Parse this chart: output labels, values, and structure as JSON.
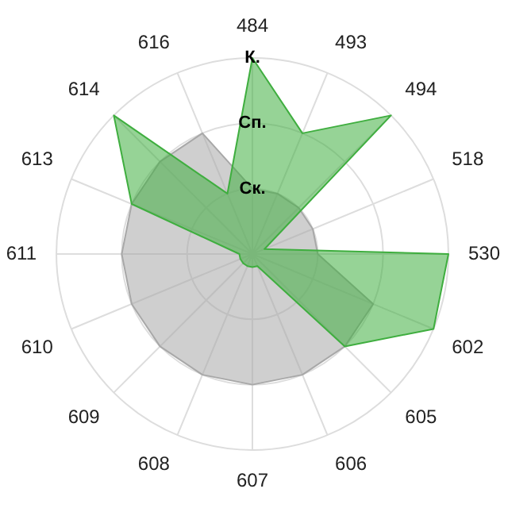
{
  "chart_data": {
    "type": "radar",
    "categories": [
      "484",
      "493",
      "494",
      "518",
      "530",
      "602",
      "605",
      "606",
      "607",
      "608",
      "609",
      "610",
      "611",
      "613",
      "614",
      "616"
    ],
    "ylim": [
      0,
      3
    ],
    "yticks": [
      {
        "value": 1,
        "label": "Ск."
      },
      {
        "value": 2,
        "label": "Сп."
      },
      {
        "value": 3,
        "label": "К."
      }
    ],
    "grid": true,
    "legend": false,
    "marker": "none",
    "series": [
      {
        "color": "#a8a8a8",
        "values": [
          1,
          1,
          1,
          1,
          1,
          2,
          2,
          2,
          2,
          2,
          2,
          2,
          2,
          2,
          2,
          2
        ]
      },
      {
        "color": "#3fae3f",
        "values": [
          3,
          2,
          3,
          0.2,
          3,
          3,
          2,
          0.2,
          0.2,
          0.2,
          0.2,
          0.2,
          0.2,
          2,
          3,
          1
        ]
      }
    ]
  }
}
